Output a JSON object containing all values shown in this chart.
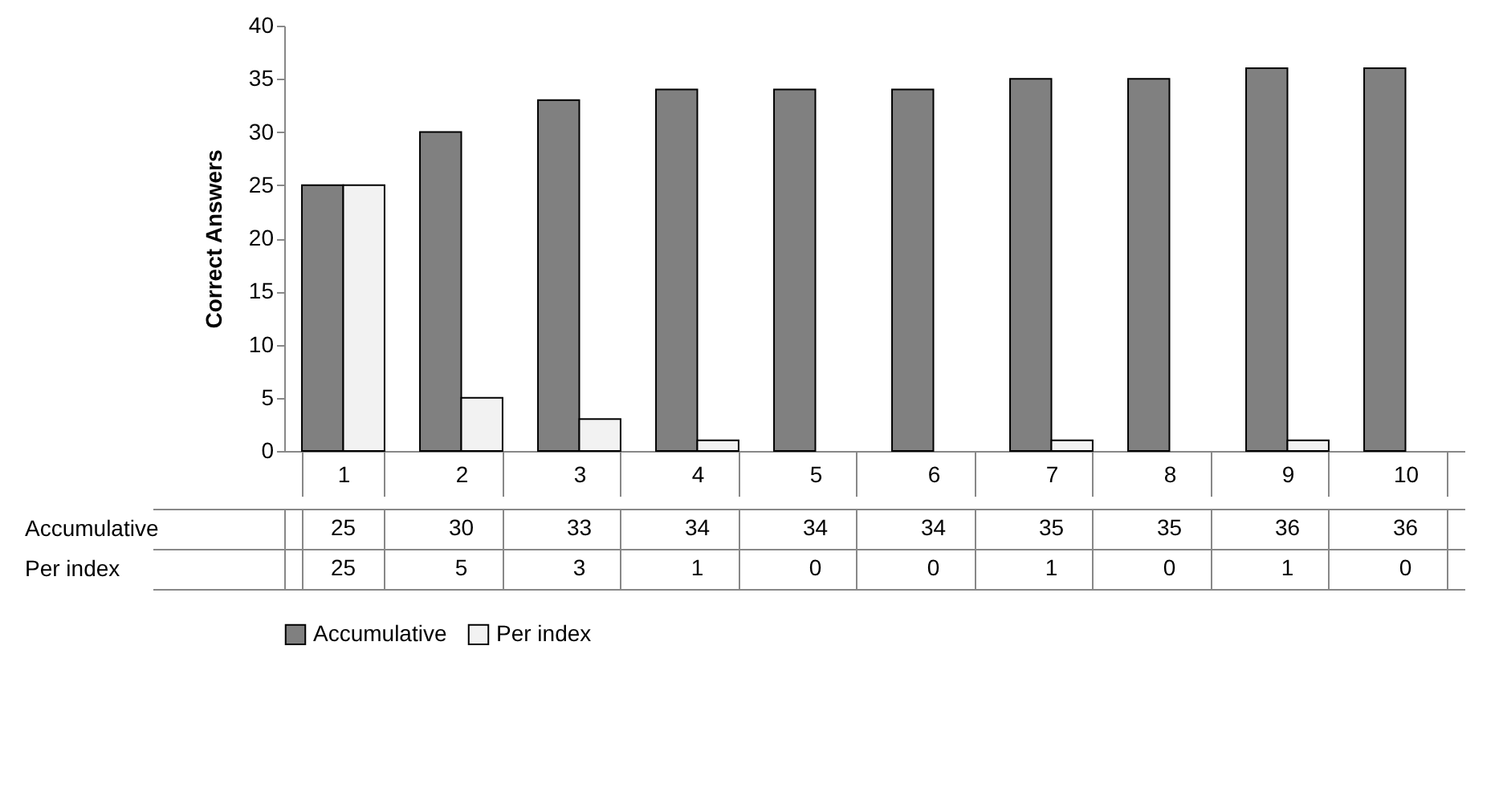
{
  "chart_data": {
    "type": "bar",
    "ylabel": "Correct Answers",
    "categories": [
      "1",
      "2",
      "3",
      "4",
      "5",
      "6",
      "7",
      "8",
      "9",
      "10"
    ],
    "series": [
      {
        "name": "Accumulative",
        "color": "#808080",
        "values": [
          25,
          30,
          33,
          34,
          34,
          34,
          35,
          35,
          36,
          36
        ]
      },
      {
        "name": "Per index",
        "color": "#f2f2f2",
        "values": [
          25,
          5,
          3,
          1,
          0,
          0,
          1,
          0,
          1,
          0
        ]
      }
    ],
    "ylim": [
      0,
      40
    ],
    "yticks": [
      0,
      5,
      10,
      15,
      20,
      25,
      30,
      35,
      40
    ],
    "grid": false,
    "legend": "bottom",
    "data_labels": true
  }
}
